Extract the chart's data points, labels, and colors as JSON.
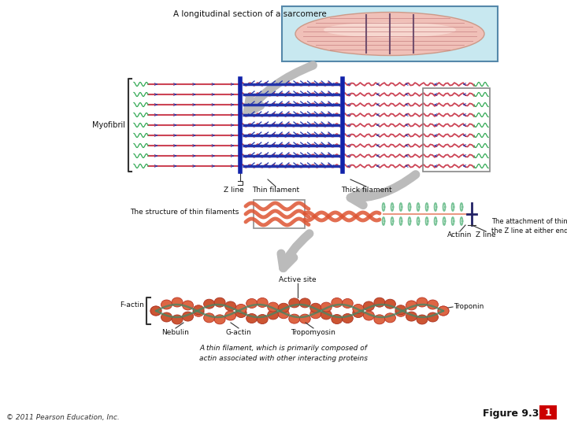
{
  "title": "A longitudinal section of a sarcomere",
  "bg_color": "#ffffff",
  "figure_label": "Figure 9.3",
  "figure_number": "1",
  "figure_number_bg": "#cc0000",
  "copyright": "© 2011 Pearson Education, Inc.",
  "panel2": {
    "myofibril_label": "Myofibril",
    "z_line_label": "Z line",
    "thin_filament_label": "Thin filament",
    "thick_filament_label": "Thick filament",
    "thin_color": "#cc4455",
    "thick_color": "#2233aa",
    "z_color": "#1122aa",
    "actin_wave_color": "#33aa55"
  },
  "panel3": {
    "label": "The structure of thin filaments",
    "actinin_label": "Actinin",
    "z_line_label": "Z line",
    "attach_label1": "The attachment of thin filaments to",
    "attach_label2": "the Z line at either end of a sarcomere",
    "filament_color": "#dd5533",
    "coil_color": "#66bb88"
  },
  "panel4": {
    "label": "A thin filament, which is primarily composed of\nactin associated with other interacting proteins",
    "active_site": "Active site",
    "f_actin": "F-actin",
    "nebulin": "Nebulin",
    "g_actin": "G-actin",
    "tropomyosin": "Tropomyosin",
    "troponin": "Troponin",
    "actin_color": "#dd6644",
    "trop_color": "#448866"
  },
  "arrow_color": "#bbbbbb"
}
